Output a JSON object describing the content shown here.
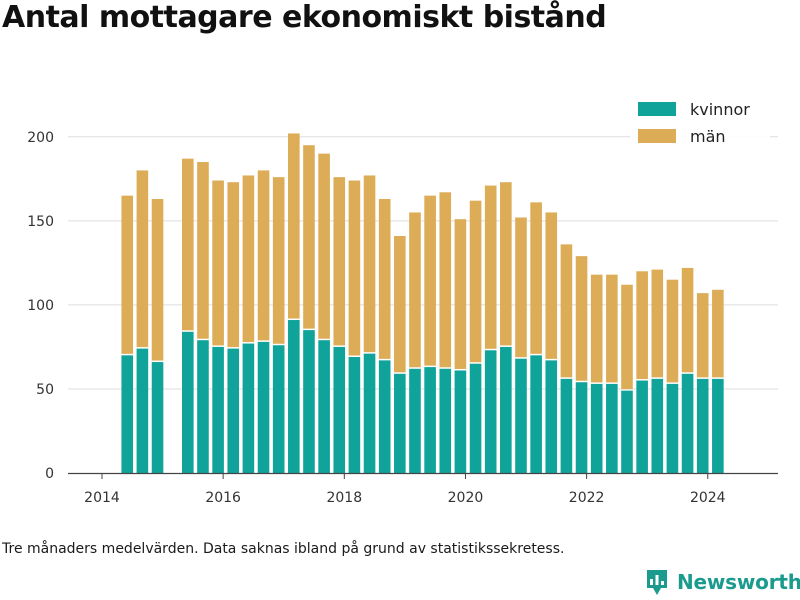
{
  "title": "Antal mottagare ekonomiskt bistånd",
  "footnote": "Tre månaders medelvärden. Data saknas ibland på grund av statistikssekretess.",
  "brand": {
    "name": "Newsworthy",
    "logo": "bar-chart-logo-icon"
  },
  "colors": {
    "kvinnor": "#0fa39a",
    "man": "#dcac57",
    "grid": "#dddddd",
    "axis": "#444444",
    "brand": "#1b9a8e"
  },
  "chart_data": {
    "type": "bar",
    "stacked": true,
    "title": "Antal mottagare ekonomiskt bistånd",
    "xlabel": "",
    "ylabel": "",
    "ylim": [
      0,
      210
    ],
    "y_ticks": [
      0,
      50,
      100,
      150,
      200
    ],
    "x_ticks": [
      "2014",
      "2016",
      "2018",
      "2020",
      "2022",
      "2024"
    ],
    "grid": true,
    "legend_position": "top-right",
    "periods": [
      "2014-06",
      "2014-09",
      "2014-12",
      "2015-03",
      "2015-06",
      "2015-09",
      "2015-12",
      "2016-03",
      "2016-06",
      "2016-09",
      "2016-12",
      "2017-03",
      "2017-06",
      "2017-09",
      "2017-12",
      "2018-03",
      "2018-06",
      "2018-09",
      "2018-12",
      "2019-03",
      "2019-06",
      "2019-09",
      "2019-12",
      "2020-03",
      "2020-06",
      "2020-09",
      "2020-12",
      "2021-03",
      "2021-06",
      "2021-09",
      "2021-12",
      "2022-03",
      "2022-06",
      "2022-09",
      "2022-12",
      "2023-03",
      "2023-06",
      "2023-09",
      "2023-12",
      "2024-03"
    ],
    "series": [
      {
        "name": "kvinnor",
        "values": [
          70,
          74,
          66,
          null,
          84,
          79,
          75,
          74,
          77,
          78,
          76,
          91,
          85,
          79,
          75,
          69,
          71,
          67,
          59,
          62,
          63,
          62,
          61,
          65,
          73,
          75,
          68,
          70,
          67,
          56,
          54,
          53,
          53,
          49,
          55,
          56,
          53,
          59,
          56,
          56
        ]
      },
      {
        "name": "män",
        "values": [
          95,
          106,
          97,
          null,
          103,
          106,
          99,
          99,
          100,
          102,
          100,
          111,
          110,
          111,
          101,
          105,
          106,
          96,
          82,
          93,
          102,
          105,
          90,
          97,
          98,
          98,
          84,
          91,
          88,
          80,
          75,
          65,
          65,
          63,
          65,
          65,
          62,
          63,
          51,
          53
        ]
      }
    ]
  }
}
